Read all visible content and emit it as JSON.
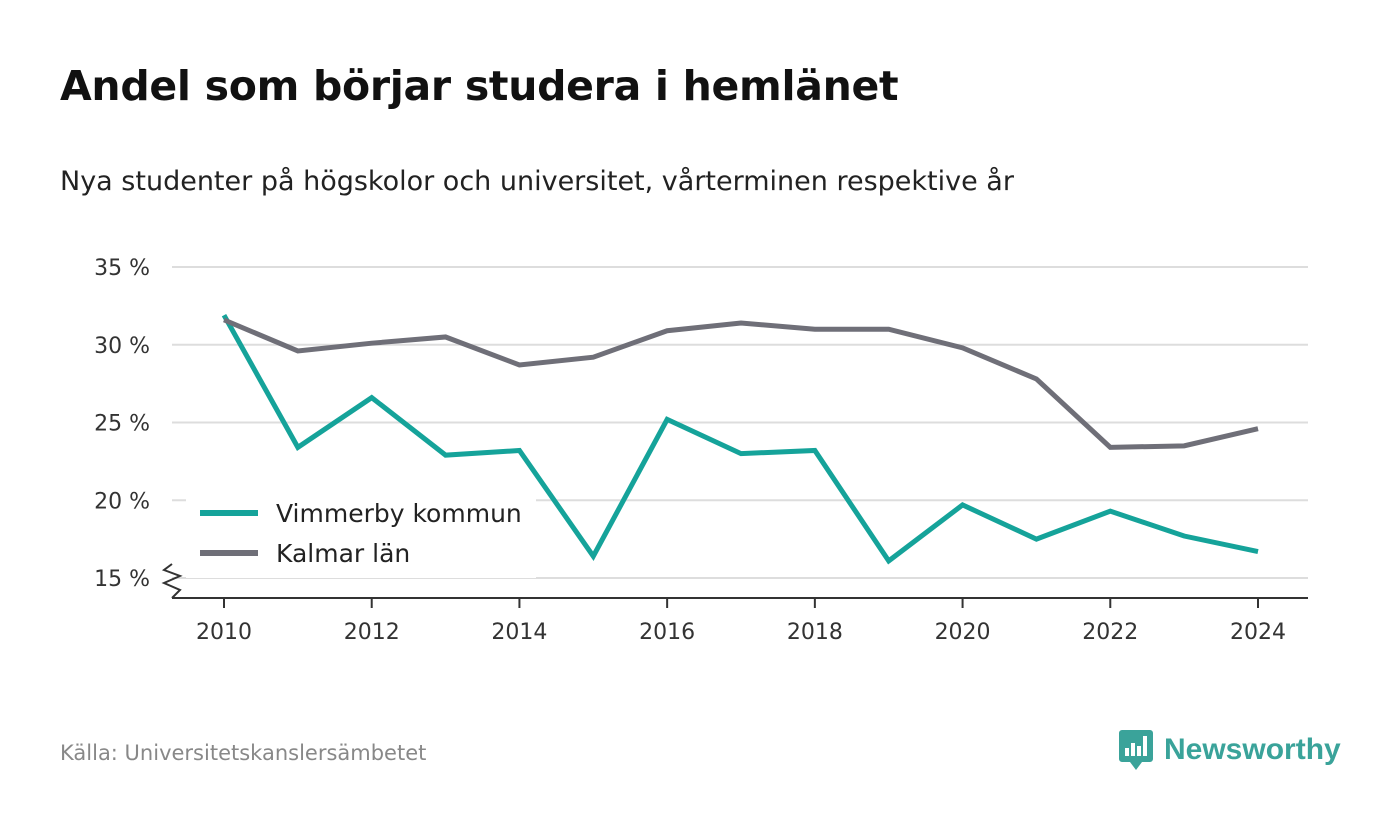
{
  "header": {
    "title": "Andel som börjar studera i hemlänet",
    "subtitle": "Nya studenter på högskolor och universitet, vårterminen respektive år"
  },
  "footer": {
    "source": "Källa: Universitetskanslersämbetet",
    "brand": "Newsworthy",
    "logo_icon": "newsworthy-logo-icon"
  },
  "colors": {
    "vimmerby": "#15a39a",
    "kalmar": "#6f6f78",
    "grid": "#dddddd",
    "axis": "#333333",
    "brand": "#3aa39a"
  },
  "chart_data": {
    "type": "line",
    "x": [
      2010,
      2011,
      2012,
      2013,
      2014,
      2015,
      2016,
      2017,
      2018,
      2019,
      2020,
      2021,
      2022,
      2023,
      2024
    ],
    "x_ticks": [
      "2010",
      "2012",
      "2014",
      "2016",
      "2018",
      "2020",
      "2022",
      "2024"
    ],
    "y_ticks": [
      "15 %",
      "20 %",
      "25 %",
      "30 %",
      "35 %"
    ],
    "ylim": [
      15,
      35
    ],
    "y_axis_break": true,
    "grid": true,
    "legend_position": "bottom-left",
    "series": [
      {
        "name": "Vimmerby kommun",
        "color": "#15a39a",
        "values": [
          31.9,
          23.4,
          26.6,
          22.9,
          23.2,
          16.4,
          25.2,
          23.0,
          23.2,
          16.1,
          19.7,
          17.5,
          19.3,
          17.7,
          16.7
        ]
      },
      {
        "name": "Kalmar län",
        "color": "#6f6f78",
        "values": [
          31.6,
          29.6,
          30.1,
          30.5,
          28.7,
          29.2,
          30.9,
          31.4,
          31.0,
          31.0,
          29.8,
          27.8,
          23.4,
          23.5,
          24.6
        ]
      }
    ]
  }
}
